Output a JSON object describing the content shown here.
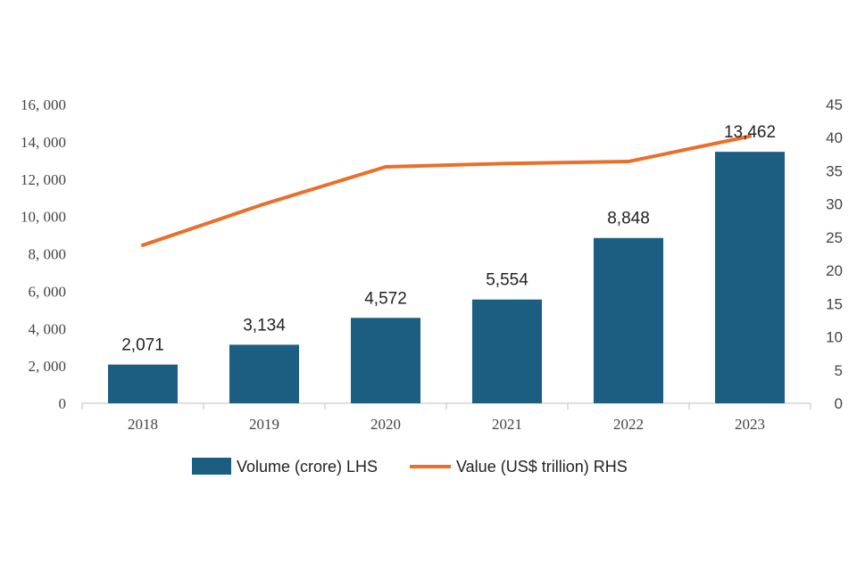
{
  "chart_data": {
    "type": "bar",
    "title": "",
    "categories": [
      "2018",
      "2019",
      "2020",
      "2021",
      "2022",
      "2023"
    ],
    "series": [
      {
        "name": "Volume (crore) LHS",
        "type": "bar",
        "axis": "left",
        "color": "#1b5e82",
        "values": [
          2071,
          3134,
          4572,
          5554,
          8848,
          13462
        ],
        "labels": [
          "2,071",
          "3,134",
          "4,572",
          "5,554",
          "8,848",
          "13,462"
        ]
      },
      {
        "name": "Value (US$ trillion) RHS",
        "type": "line",
        "axis": "right",
        "color": "#e8702a",
        "values": [
          23.8,
          30,
          35.6,
          36.1,
          36.4,
          40.2
        ]
      }
    ],
    "y_left": {
      "min": 0,
      "max": 16000,
      "step": 2000,
      "tick_labels": [
        "0",
        "2, 000",
        "4, 000",
        "6, 000",
        "8, 000",
        "10, 000",
        "12, 000",
        "14, 000",
        "16, 000"
      ]
    },
    "y_right": {
      "min": 0,
      "max": 45,
      "step": 5,
      "tick_labels": [
        "0",
        "5",
        "10",
        "15",
        "20",
        "25",
        "30",
        "35",
        "40",
        "45"
      ]
    },
    "xlabel": "",
    "ylabel": "",
    "grid": false,
    "legend_position": "bottom"
  }
}
